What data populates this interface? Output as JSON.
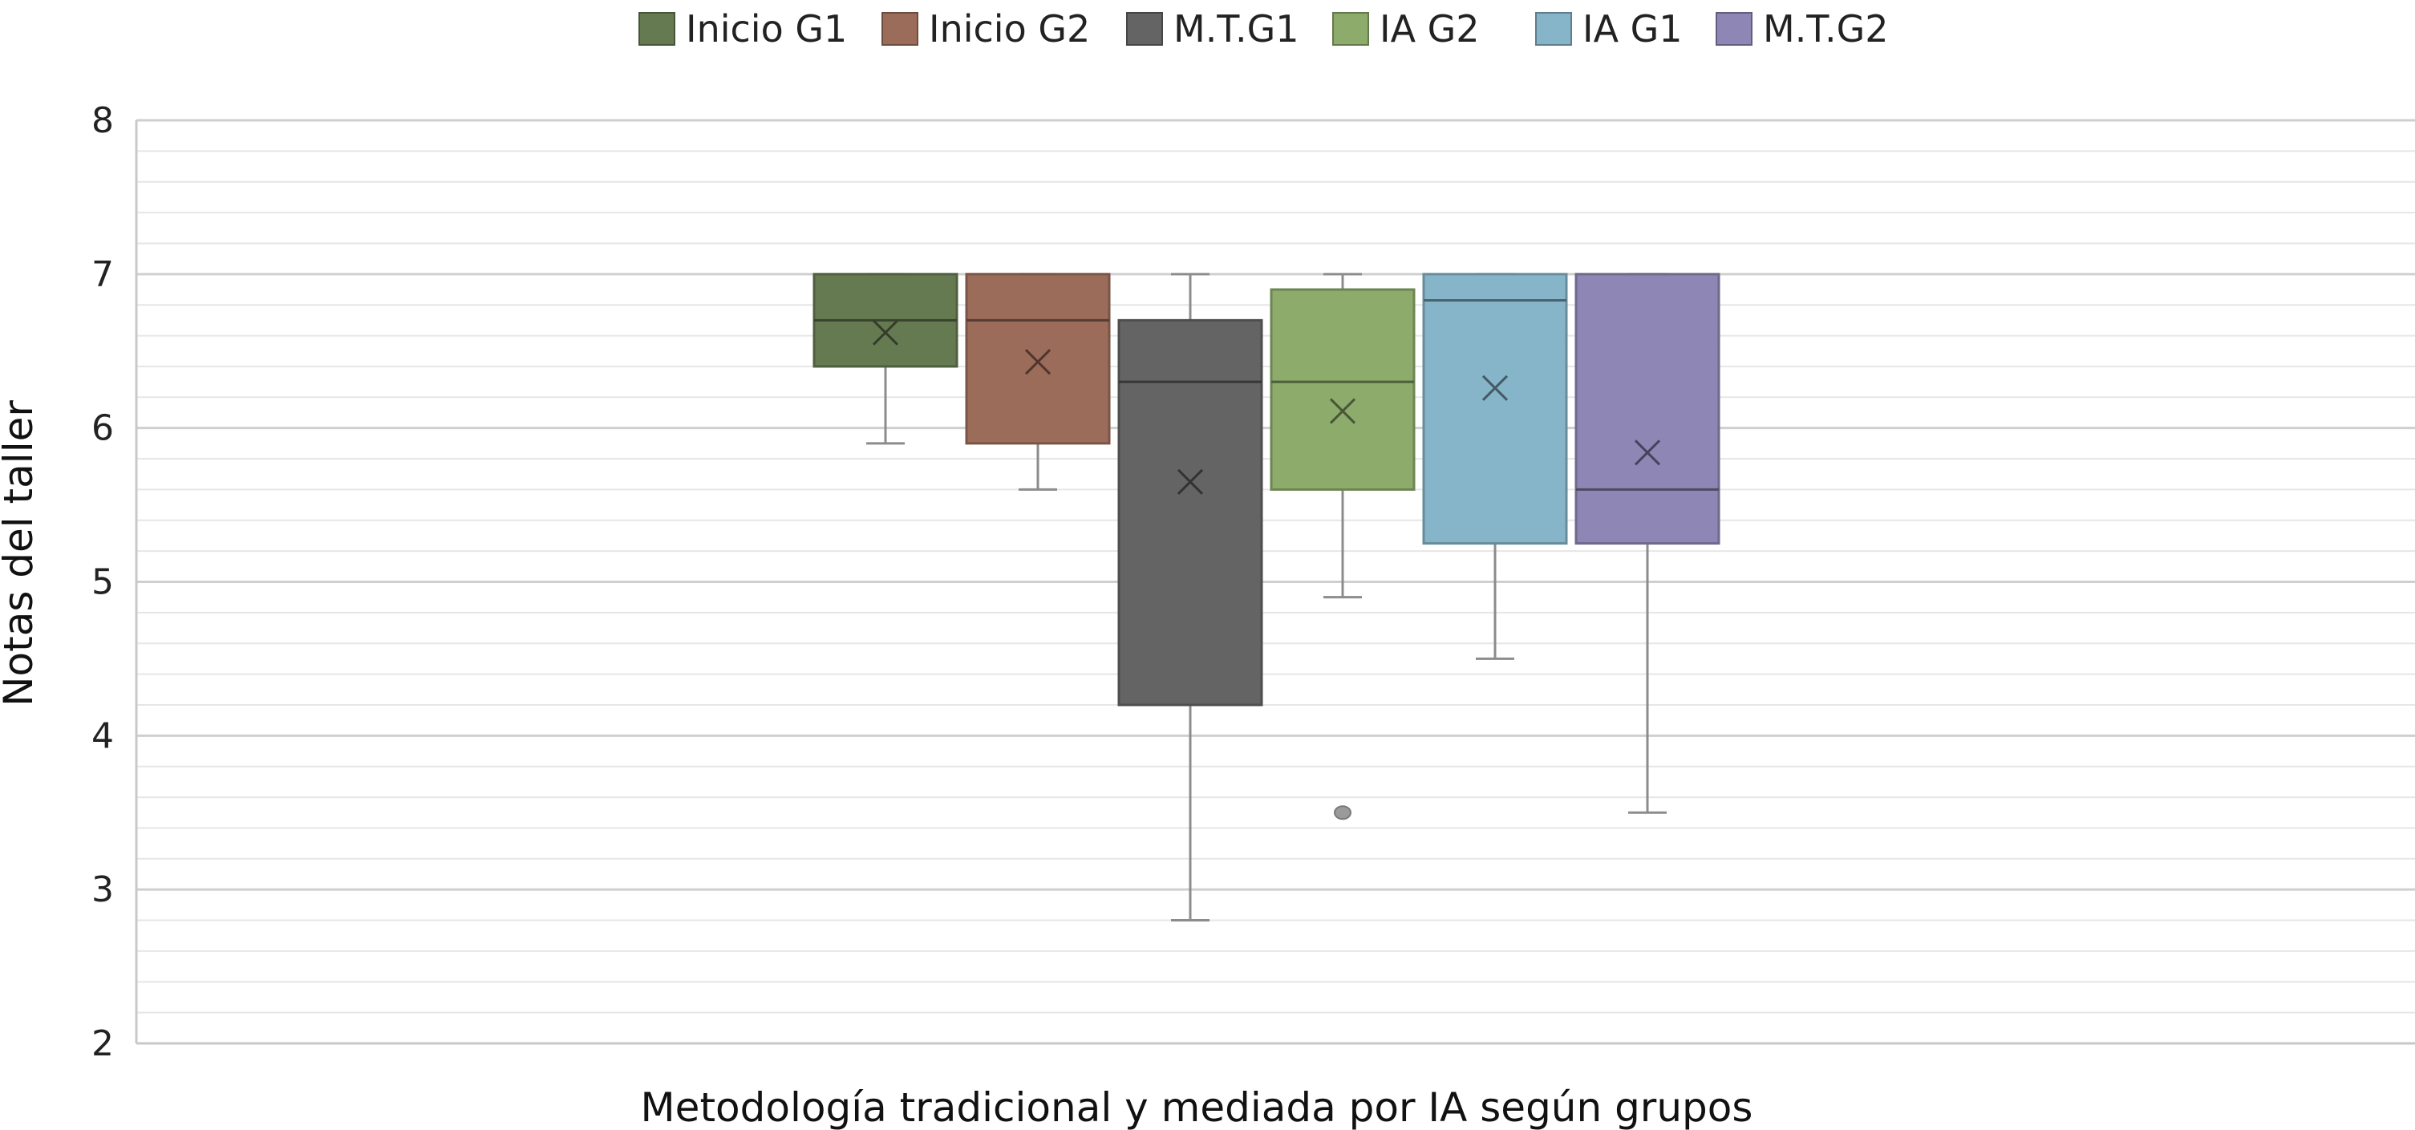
{
  "chart_data": {
    "type": "box",
    "title": "",
    "xlabel": "Metodología tradicional y mediada por IA según grupos",
    "ylabel": "Notas del taller",
    "ylim": [
      2,
      8
    ],
    "y_ticks": [
      2,
      3,
      4,
      5,
      6,
      7,
      8
    ],
    "y_tick_labels": [
      "2",
      "3",
      "4",
      "5",
      "6",
      "7",
      "8"
    ],
    "grid": "horizontal major and minor",
    "legend_position": "top",
    "series": [
      {
        "name": "Inicio G1",
        "color": "#667a52",
        "min": 5.9,
        "q1": 6.4,
        "median": 6.7,
        "q3": 7.0,
        "max": 7.0,
        "mean": 6.62,
        "outliers": []
      },
      {
        "name": "Inicio G2",
        "color": "#9c6c5b",
        "min": 5.6,
        "q1": 5.9,
        "median": 6.7,
        "q3": 7.0,
        "max": 7.0,
        "mean": 6.43,
        "outliers": []
      },
      {
        "name": "M.T.G1",
        "color": "#646464",
        "min": 2.8,
        "q1": 4.2,
        "median": 6.3,
        "q3": 6.7,
        "max": 7.0,
        "mean": 5.65,
        "outliers": []
      },
      {
        "name": "IA G2",
        "color": "#8dab6b",
        "min": 4.9,
        "q1": 5.6,
        "median": 6.3,
        "q3": 6.9,
        "max": 7.0,
        "mean": 6.11,
        "outliers": [
          3.5
        ]
      },
      {
        "name": "IA G1",
        "color": "#86b4c8",
        "min": 4.5,
        "q1": 5.25,
        "median": 6.83,
        "q3": 7.0,
        "max": 7.0,
        "mean": 6.26,
        "outliers": []
      },
      {
        "name": "M.T.G2",
        "color": "#8e86b4",
        "min": 3.5,
        "q1": 5.25,
        "median": 5.6,
        "q3": 7.0,
        "max": 7.0,
        "mean": 5.84,
        "outliers": []
      }
    ]
  }
}
